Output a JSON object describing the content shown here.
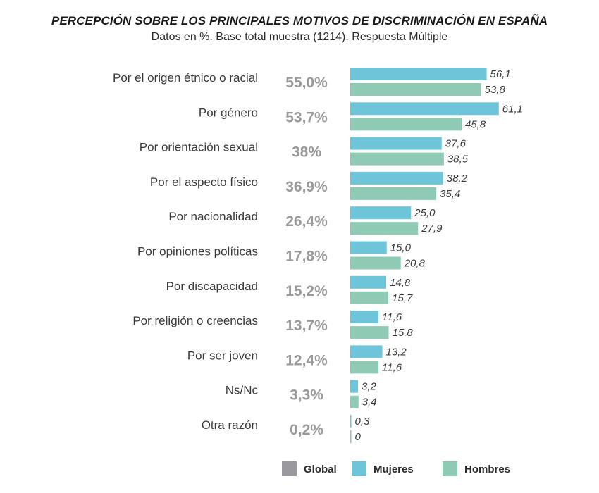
{
  "chart_data": {
    "type": "bar",
    "orientation": "horizontal",
    "title": "PERCEPCIÓN SOBRE LOS PRINCIPALES MOTIVOS DE DISCRIMINACIÓN EN ESPAÑA",
    "subtitle": "Datos en %. Base total muestra (1214). Respuesta Múltiple",
    "categories": [
      "Por el origen étnico o racial",
      "Por género",
      "Por orientación sexual",
      "Por el aspecto físico",
      "Por nacionalidad",
      "Por opiniones políticas",
      "Por discapacidad",
      "Por religión o creencias",
      "Por ser joven",
      "Ns/Nc",
      "Otra razón"
    ],
    "global_labels": [
      "55,0%",
      "53,7%",
      "38%",
      "36,9%",
      "26,4%",
      "17,8%",
      "15,2%",
      "13,7%",
      "12,4%",
      "3,3%",
      "0,2%"
    ],
    "series": [
      {
        "name": "Mujeres",
        "color": "#6ec4d8",
        "values": [
          56.1,
          61.1,
          37.6,
          38.2,
          25.0,
          15.0,
          14.8,
          11.6,
          13.2,
          3.2,
          0.3
        ],
        "labels": [
          "56,1",
          "61,1",
          "37,6",
          "38,2",
          "25,0",
          "15,0",
          "14,8",
          "11,6",
          "13,2",
          "3,2",
          "0,3"
        ]
      },
      {
        "name": "Hombres",
        "color": "#8fcab5",
        "values": [
          53.8,
          45.8,
          38.5,
          35.4,
          27.9,
          20.8,
          15.7,
          15.8,
          11.6,
          3.4,
          0
        ],
        "labels": [
          "53,8",
          "45,8",
          "38,5",
          "35,4",
          "27,9",
          "20,8",
          "15,7",
          "15,8",
          "11,6",
          "3,4",
          "0"
        ]
      }
    ],
    "legend": {
      "placement": "bottom-right",
      "items": [
        {
          "label": "Global",
          "color": "#9a9a9e"
        },
        {
          "label": "Mujeres",
          "color": "#6ec4d8"
        },
        {
          "label": "Hombres",
          "color": "#8fcab5"
        }
      ]
    },
    "xlim": [
      0,
      65
    ],
    "grid": false
  }
}
